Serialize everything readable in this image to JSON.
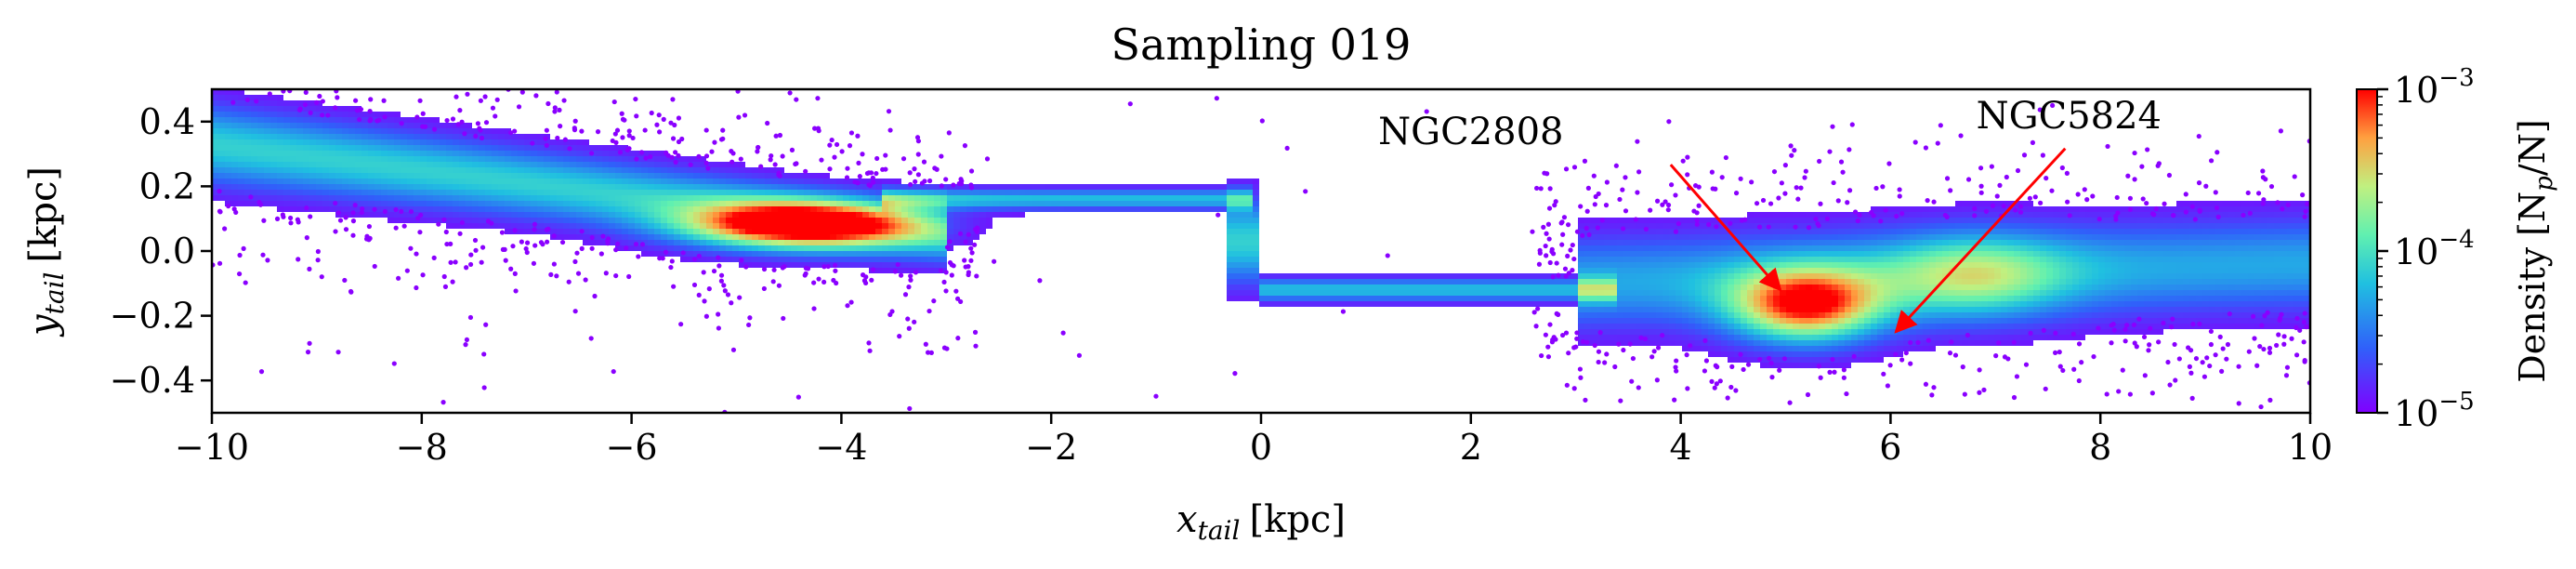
{
  "chart_data": {
    "type": "heatmap",
    "title": "Sampling 019",
    "xlabel": "x_tail [kpc]",
    "ylabel": "y_tail [kpc]",
    "xlabel_main": "x",
    "xlabel_sub": "tail",
    "xlabel_unit": "[kpc]",
    "ylabel_main": "y",
    "ylabel_sub": "tail",
    "ylabel_unit": "[kpc]",
    "xlim": [
      -10,
      10
    ],
    "ylim": [
      -0.5,
      0.5
    ],
    "x_ticks": [
      -10,
      -8,
      -6,
      -4,
      -2,
      0,
      2,
      4,
      6,
      8,
      10
    ],
    "x_tick_labels": [
      "−10",
      "−8",
      "−6",
      "−4",
      "−2",
      "0",
      "2",
      "4",
      "6",
      "8",
      "10"
    ],
    "y_ticks": [
      -0.4,
      -0.2,
      0.0,
      0.2,
      0.4
    ],
    "y_tick_labels": [
      "−0.4",
      "−0.2",
      "0.0",
      "0.2",
      "0.4"
    ],
    "grid": false,
    "colormap": "rainbow",
    "colors": {
      "low": "#8000ff",
      "high": "#ff0000",
      "annotation_arrow": "#ff0000"
    },
    "colorbar": {
      "label": "Density [N_p/N]",
      "label_text": "Density",
      "label_unit_main": "[N",
      "label_unit_sub": "p",
      "label_unit_tail": "/N]",
      "scale": "log",
      "range": [
        1e-05,
        0.001
      ],
      "ticks": [
        1e-05,
        0.0001,
        0.001
      ],
      "tick_base": "10",
      "tick_exponents": [
        "−5",
        "−4",
        "−3"
      ]
    },
    "annotations": [
      {
        "text": "NGC2808",
        "label_at": [
          2.0,
          0.33
        ],
        "arrow_to": [
          4.95,
          -0.12
        ]
      },
      {
        "text": "NGC5824",
        "label_at": [
          7.7,
          0.38
        ],
        "arrow_to": [
          6.05,
          -0.25
        ]
      }
    ],
    "structures": [
      {
        "name": "leading tail left",
        "x_range": [
          -9.8,
          -3.0
        ],
        "y_center_at_ends": [
          0.32,
          0.05
        ],
        "peak": [
          -4.3,
          0.08
        ]
      },
      {
        "name": "bridge left",
        "x_range": [
          -3.0,
          -0.05
        ],
        "y": 0.16
      },
      {
        "name": "bridge right",
        "x_range": [
          0.0,
          3.0
        ],
        "y": -0.12
      },
      {
        "name": "trailing tail right",
        "x_range": [
          3.0,
          10.0
        ],
        "peak": [
          5.2,
          -0.18
        ]
      }
    ]
  }
}
